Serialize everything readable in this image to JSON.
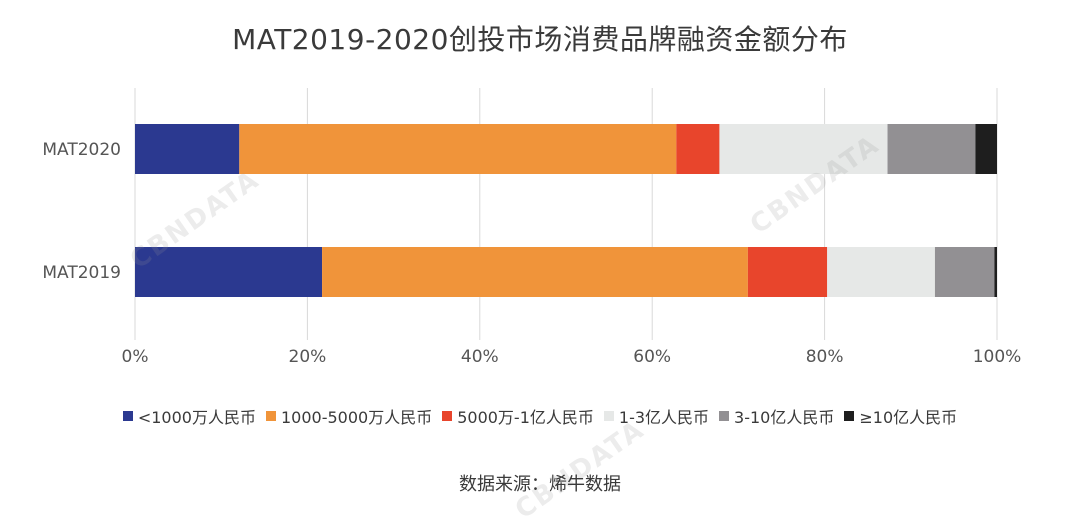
{
  "chart_data": {
    "type": "bar",
    "orientation": "horizontal",
    "stacked": true,
    "title": "MAT2019-2020创投市场消费品牌融资金额分布",
    "categories": [
      "MAT2020",
      "MAT2019"
    ],
    "series": [
      {
        "name": "<1000万人民币",
        "color": "#2b3990",
        "values": [
          12.1,
          21.7
        ]
      },
      {
        "name": "1000-5000万人民币",
        "color": "#f0943a",
        "values": [
          50.7,
          49.4
        ]
      },
      {
        "name": "5000万-1亿人民币",
        "color": "#e8452c",
        "values": [
          5.0,
          9.2
        ]
      },
      {
        "name": "1-3亿人民币",
        "color": "#e6e8e7",
        "values": [
          19.5,
          12.5
        ]
      },
      {
        "name": "3-10亿人民币",
        "color": "#929093",
        "values": [
          10.2,
          6.9
        ]
      },
      {
        "name": "≥10亿人民币",
        "color": "#1e1e1e",
        "values": [
          2.5,
          0.3
        ]
      }
    ],
    "xlim": [
      0,
      100
    ],
    "x_ticks": [
      "0%",
      "20%",
      "40%",
      "60%",
      "80%",
      "100%"
    ],
    "grid": true,
    "legend_position": "bottom"
  },
  "source": "数据来源：烯牛数据",
  "watermark": "CBNDATA"
}
